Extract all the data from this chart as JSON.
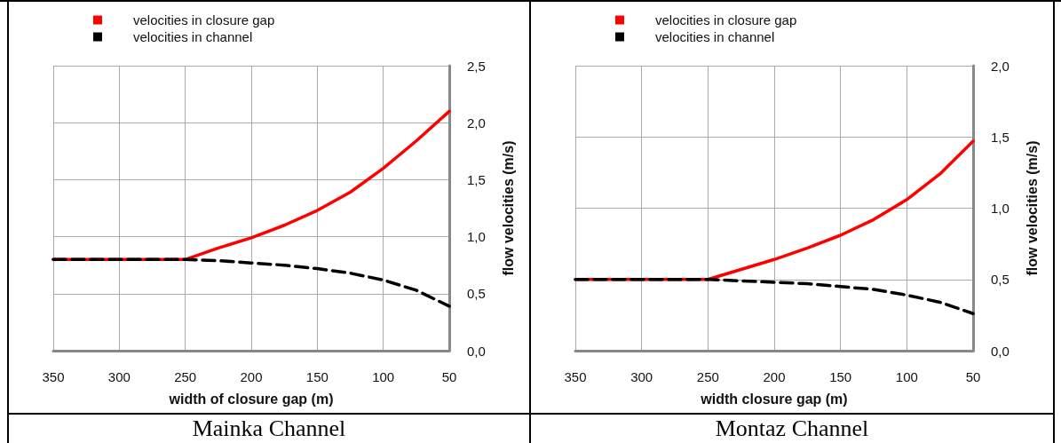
{
  "chart_data": [
    {
      "type": "line",
      "title": "Mainka Channel",
      "xlabel": "width of closure gap (m)",
      "ylabel": "flow velocities (m/s)",
      "x": [
        350,
        300,
        250,
        225,
        200,
        175,
        150,
        125,
        100,
        75,
        50
      ],
      "xlim": [
        350,
        50
      ],
      "xticks": [
        350,
        300,
        250,
        200,
        150,
        100,
        50
      ],
      "ylim": [
        0,
        2.5
      ],
      "yticks": [
        {
          "value": 0,
          "label": "0,0"
        },
        {
          "value": 0.5,
          "label": "0,5"
        },
        {
          "value": 1,
          "label": "1,0"
        },
        {
          "value": 1.5,
          "label": "1,5"
        },
        {
          "value": 2,
          "label": "2,0"
        },
        {
          "value": 2.5,
          "label": "2,5"
        }
      ],
      "grid": true,
      "legend": "top",
      "marker": "none",
      "series": [
        {
          "name": "velocities in closure gap",
          "color": "#ff0000",
          "line_style": "solid",
          "values": [
            0.8,
            0.8,
            0.8,
            0.9,
            0.99,
            1.1,
            1.23,
            1.39,
            1.6,
            1.84,
            2.1
          ]
        },
        {
          "name": "velocities in channel",
          "color": "#000000",
          "line_style": "dashed",
          "values": [
            0.8,
            0.8,
            0.8,
            0.79,
            0.77,
            0.75,
            0.72,
            0.68,
            0.62,
            0.53,
            0.39
          ]
        }
      ]
    },
    {
      "type": "line",
      "title": "Montaz Channel",
      "xlabel": "width closure gap (m)",
      "ylabel": "flow velocities (m/s)",
      "x": [
        350,
        300,
        250,
        225,
        200,
        175,
        150,
        125,
        100,
        75,
        50
      ],
      "xlim": [
        350,
        50
      ],
      "xticks": [
        350,
        300,
        250,
        200,
        150,
        100,
        50
      ],
      "ylim": [
        0,
        2
      ],
      "yticks": [
        {
          "value": 0,
          "label": "0,0"
        },
        {
          "value": 0.5,
          "label": "0,5"
        },
        {
          "value": 1,
          "label": "1,0"
        },
        {
          "value": 1.5,
          "label": "1,5"
        },
        {
          "value": 2,
          "label": "2,0"
        }
      ],
      "grid": true,
      "legend": "top",
      "marker": "none",
      "series": [
        {
          "name": "velocities in closure gap",
          "color": "#ff0000",
          "line_style": "solid",
          "values": [
            0.5,
            0.5,
            0.5,
            0.57,
            0.64,
            0.72,
            0.81,
            0.92,
            1.06,
            1.24,
            1.47
          ]
        },
        {
          "name": "velocities in channel",
          "color": "#000000",
          "line_style": "dashed",
          "values": [
            0.5,
            0.5,
            0.5,
            0.49,
            0.48,
            0.47,
            0.45,
            0.43,
            0.39,
            0.34,
            0.26
          ]
        }
      ]
    }
  ]
}
